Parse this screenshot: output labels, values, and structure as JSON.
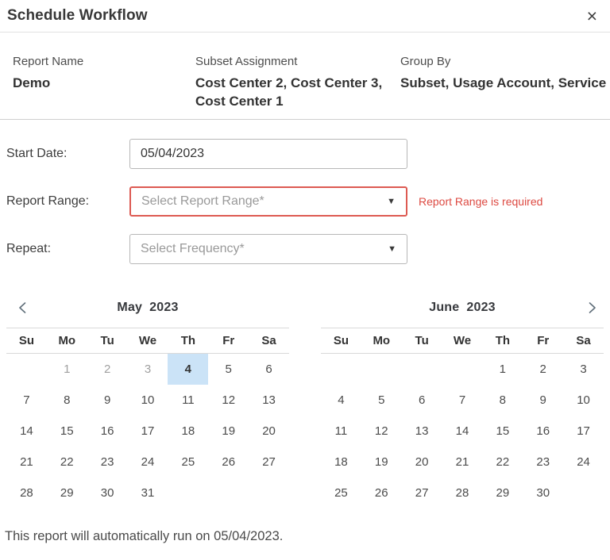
{
  "colors": {
    "error_red": "#dd5a52",
    "selected_day_bg": "#cbe3f7",
    "input_border_gray": "#b7b7b7"
  },
  "header": {
    "title": "Schedule Workflow",
    "close_icon": "×"
  },
  "info": {
    "columns": [
      {
        "label": "Report Name",
        "value": "Demo"
      },
      {
        "label": "Subset Assignment",
        "value": "Cost Center 2, Cost Center 3, Cost Center 1"
      },
      {
        "label": "Group By",
        "value": "Subset, Usage Account, Service"
      }
    ]
  },
  "form": {
    "start_date": {
      "label": "Start Date:",
      "value": "05/04/2023"
    },
    "report_range": {
      "label": "Report Range:",
      "placeholder": "Select Report Range*",
      "caret_icon": "▼",
      "error": "Report Range is required"
    },
    "repeat": {
      "label": "Repeat:",
      "placeholder": "Select Frequency*",
      "caret_icon": "▼"
    }
  },
  "calendar": {
    "weekdays": [
      "Su",
      "Mo",
      "Tu",
      "We",
      "Th",
      "Fr",
      "Sa"
    ],
    "months": [
      {
        "month": "May",
        "year": "2023",
        "days": [
          {
            "d": "",
            "t": "empty"
          },
          {
            "d": "1",
            "t": "muted"
          },
          {
            "d": "2",
            "t": "muted"
          },
          {
            "d": "3",
            "t": "muted"
          },
          {
            "d": "4",
            "t": "selected"
          },
          {
            "d": "5",
            "t": "day"
          },
          {
            "d": "6",
            "t": "day"
          },
          {
            "d": "7",
            "t": "day"
          },
          {
            "d": "8",
            "t": "day"
          },
          {
            "d": "9",
            "t": "day"
          },
          {
            "d": "10",
            "t": "day"
          },
          {
            "d": "11",
            "t": "day"
          },
          {
            "d": "12",
            "t": "day"
          },
          {
            "d": "13",
            "t": "day"
          },
          {
            "d": "14",
            "t": "day"
          },
          {
            "d": "15",
            "t": "day"
          },
          {
            "d": "16",
            "t": "day"
          },
          {
            "d": "17",
            "t": "day"
          },
          {
            "d": "18",
            "t": "day"
          },
          {
            "d": "19",
            "t": "day"
          },
          {
            "d": "20",
            "t": "day"
          },
          {
            "d": "21",
            "t": "day"
          },
          {
            "d": "22",
            "t": "day"
          },
          {
            "d": "23",
            "t": "day"
          },
          {
            "d": "24",
            "t": "day"
          },
          {
            "d": "25",
            "t": "day"
          },
          {
            "d": "26",
            "t": "day"
          },
          {
            "d": "27",
            "t": "day"
          },
          {
            "d": "28",
            "t": "day"
          },
          {
            "d": "29",
            "t": "day"
          },
          {
            "d": "30",
            "t": "day"
          },
          {
            "d": "31",
            "t": "day"
          },
          {
            "d": "",
            "t": "empty"
          },
          {
            "d": "",
            "t": "empty"
          },
          {
            "d": "",
            "t": "empty"
          }
        ]
      },
      {
        "month": "June",
        "year": "2023",
        "days": [
          {
            "d": "",
            "t": "empty"
          },
          {
            "d": "",
            "t": "empty"
          },
          {
            "d": "",
            "t": "empty"
          },
          {
            "d": "",
            "t": "empty"
          },
          {
            "d": "1",
            "t": "day"
          },
          {
            "d": "2",
            "t": "day"
          },
          {
            "d": "3",
            "t": "day"
          },
          {
            "d": "4",
            "t": "day"
          },
          {
            "d": "5",
            "t": "day"
          },
          {
            "d": "6",
            "t": "day"
          },
          {
            "d": "7",
            "t": "day"
          },
          {
            "d": "8",
            "t": "day"
          },
          {
            "d": "9",
            "t": "day"
          },
          {
            "d": "10",
            "t": "day"
          },
          {
            "d": "11",
            "t": "day"
          },
          {
            "d": "12",
            "t": "day"
          },
          {
            "d": "13",
            "t": "day"
          },
          {
            "d": "14",
            "t": "day"
          },
          {
            "d": "15",
            "t": "day"
          },
          {
            "d": "16",
            "t": "day"
          },
          {
            "d": "17",
            "t": "day"
          },
          {
            "d": "18",
            "t": "day"
          },
          {
            "d": "19",
            "t": "day"
          },
          {
            "d": "20",
            "t": "day"
          },
          {
            "d": "21",
            "t": "day"
          },
          {
            "d": "22",
            "t": "day"
          },
          {
            "d": "23",
            "t": "day"
          },
          {
            "d": "24",
            "t": "day"
          },
          {
            "d": "25",
            "t": "day"
          },
          {
            "d": "26",
            "t": "day"
          },
          {
            "d": "27",
            "t": "day"
          },
          {
            "d": "28",
            "t": "day"
          },
          {
            "d": "29",
            "t": "day"
          },
          {
            "d": "30",
            "t": "day"
          },
          {
            "d": "",
            "t": "empty"
          }
        ]
      }
    ]
  },
  "footer": {
    "note": "This report will automatically run on 05/04/2023."
  }
}
